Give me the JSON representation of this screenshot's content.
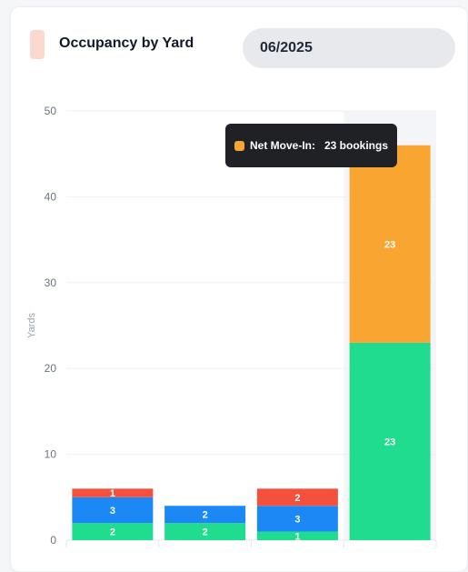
{
  "header": {
    "title": "Occupancy by Yard",
    "date_value": "06/2025"
  },
  "tooltip": {
    "series_label": "Net Move-In:",
    "value_text": "23 bookings",
    "swatch_color": "#f8a532"
  },
  "chart_data": {
    "type": "bar",
    "stacked": true,
    "title": "",
    "xlabel": "",
    "ylabel": "Yards",
    "ylim": [
      0,
      50
    ],
    "yticks": [
      0,
      10,
      20,
      30,
      40,
      50
    ],
    "grid": true,
    "categories": [
      "",
      "",
      "",
      ""
    ],
    "highlighted_category_index": 3,
    "series": [
      {
        "color": "#1fdc8f",
        "values": [
          2,
          2,
          1,
          23
        ]
      },
      {
        "color": "#1b88f5",
        "values": [
          3,
          2,
          3,
          0
        ]
      },
      {
        "color": "#f8a532",
        "values": [
          0,
          0,
          0,
          23
        ]
      },
      {
        "color": "#f4503c",
        "values": [
          1,
          0,
          2,
          0
        ]
      }
    ]
  }
}
